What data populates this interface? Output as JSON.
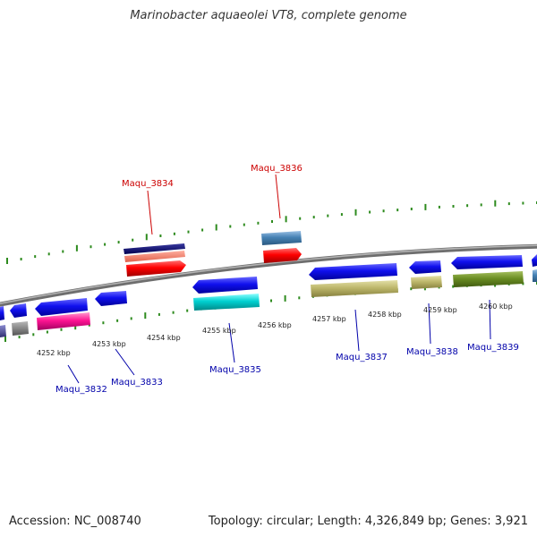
{
  "title": "Marinobacter aquaeolei VT8, complete genome",
  "footer": {
    "accession": "Accession: NC_008740",
    "summary": "Topology: circular; Length: 4,326,849 bp; Genes: 3,921"
  },
  "kbp_labels": [
    {
      "text": "4252 kbp"
    },
    {
      "text": "4253 kbp"
    },
    {
      "text": "4254 kbp"
    },
    {
      "text": "4255 kbp"
    },
    {
      "text": "4256 kbp"
    },
    {
      "text": "4257 kbp"
    },
    {
      "text": "4258 kbp"
    },
    {
      "text": "4259 kbp"
    },
    {
      "text": "4260 kbp"
    }
  ],
  "gene_labels": [
    {
      "text": "Maqu_3834",
      "color": "#cc0000"
    },
    {
      "text": "Maqu_3836",
      "color": "#cc0000"
    },
    {
      "text": "Maqu_3832",
      "color": "#0000aa"
    },
    {
      "text": "Maqu_3833",
      "color": "#0000aa"
    },
    {
      "text": "Maqu_3835",
      "color": "#0000aa"
    },
    {
      "text": "Maqu_3837",
      "color": "#0000aa"
    },
    {
      "text": "Maqu_3838",
      "color": "#0000aa"
    },
    {
      "text": "Maqu_3839",
      "color": "#0000aa"
    }
  ],
  "colors": {
    "backbone": "#8a8a8a",
    "ticks": "#2e8b1e",
    "forward_label": "#cc0000",
    "reverse_label": "#0000aa"
  }
}
